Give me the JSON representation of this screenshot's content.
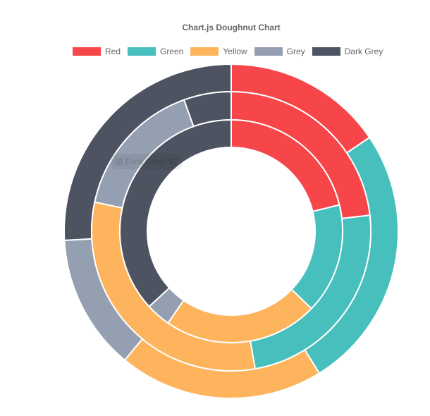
{
  "chart_data": {
    "type": "doughnut",
    "title": "Chart.js Doughnut Chart",
    "categories": [
      "Red",
      "Green",
      "Yellow",
      "Grey",
      "Dark Grey"
    ],
    "colors": [
      "#f7464a",
      "#46bfbd",
      "#fdb45c",
      "#949fb1",
      "#4d5360"
    ],
    "series": [
      {
        "values": [
          72,
          119,
          92,
          61,
          120
        ]
      },
      {
        "values": [
          76,
          79,
          102,
          53,
          18
        ]
      },
      {
        "values": [
          53,
          40,
          56,
          9,
          92
        ]
      }
    ],
    "legend_position": "top",
    "tooltip": {
      "label": "Dark Grey",
      "value": "92"
    }
  }
}
